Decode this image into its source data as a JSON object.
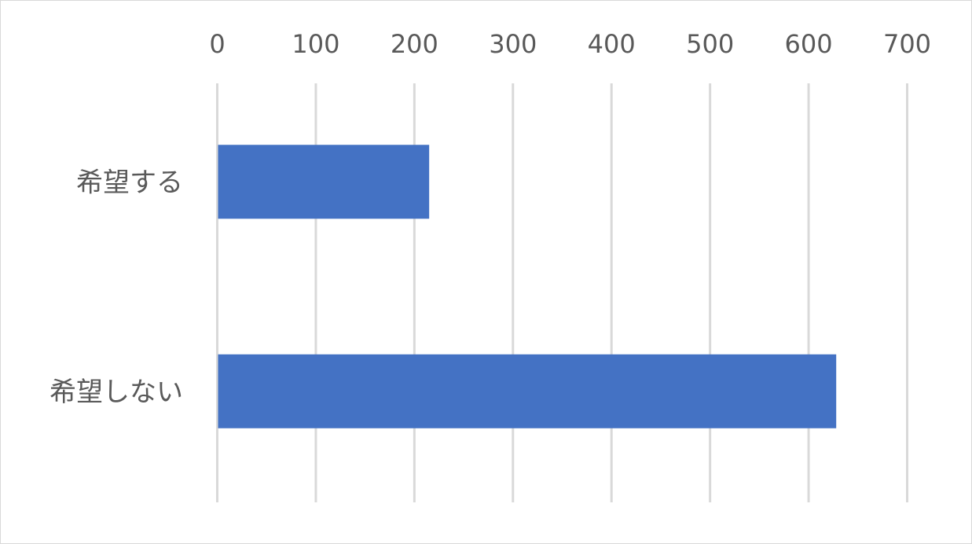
{
  "chart_data": {
    "type": "bar",
    "orientation": "horizontal",
    "categories": [
      "希望する",
      "希望しない"
    ],
    "values": [
      215,
      628
    ],
    "title": "",
    "xlabel": "",
    "ylabel": "",
    "xlim": [
      0,
      700
    ],
    "xticks": [
      0,
      100,
      200,
      300,
      400,
      500,
      600,
      700
    ],
    "x_axis_position": "top",
    "grid": true,
    "legend": "none",
    "colors": {
      "bar": "#4472C4",
      "grid": "#d9d9d9",
      "text": "#595959"
    }
  }
}
